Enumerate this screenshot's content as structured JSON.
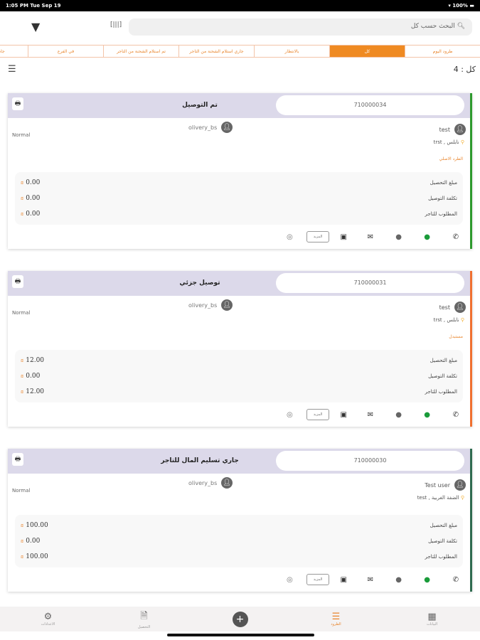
{
  "status_bar": {
    "time": "1:05 PM  Tue Sep 19",
    "battery": "100%"
  },
  "search": {
    "placeholder": "البحث حسب كل"
  },
  "tabs": [
    {
      "label": "طرود اليوم"
    },
    {
      "label": "كل",
      "active": true
    },
    {
      "label": "بالانتظار"
    },
    {
      "label": "جاري استلام الشحنة من التاجر"
    },
    {
      "label": "تم استلام الشحنة من التاجر"
    },
    {
      "label": "في الفرع"
    },
    {
      "label": "جاه"
    }
  ],
  "count_label": "كل : 4",
  "colors": {
    "accent": "#ef8a22",
    "delivered": "#2e9a2e",
    "partial": "#f07030",
    "money": "#2f6b50"
  },
  "labels": {
    "collection": "مبلغ التحصيل",
    "delivery_cost": "تكلفة التوصيل",
    "merchant_due": "المطلوب للتاجر",
    "more": "المزيد",
    "currency": "₪"
  },
  "cards": [
    {
      "id": "710000034",
      "status": "تم التوصيل",
      "customer": "test",
      "driver": "olivery_bs",
      "priority": "Normal",
      "location": "نابلس , trst",
      "tag": "الطرد الاصلي",
      "collection": "0.00",
      "delivery_cost": "0.00",
      "merchant_due": "0.00"
    },
    {
      "id": "710000031",
      "status": "توصيل جزئي",
      "customer": "test",
      "driver": "olivery_bs",
      "priority": "Normal",
      "location": "نابلس , trst",
      "tag": "مستبدل",
      "collection": "12.00",
      "delivery_cost": "0.00",
      "merchant_due": "12.00"
    },
    {
      "id": "710000030",
      "status": "جاري تسليم المال للتاجر",
      "customer": "Test user",
      "driver": "olivery_bs",
      "priority": "Normal",
      "location": "الضفة الغربية , test",
      "tag": "",
      "collection": "100.00",
      "delivery_cost": "0.00",
      "merchant_due": "100.00"
    }
  ],
  "bottom_nav": [
    {
      "label": "البيانات",
      "icon": "grid-icon"
    },
    {
      "label": "الطرود",
      "icon": "list-icon",
      "active": true
    },
    {
      "label": "",
      "icon": "plus-icon"
    },
    {
      "label": "التحصيل",
      "icon": "document-icon"
    },
    {
      "label": "الاعدادات",
      "icon": "gear-icon"
    }
  ]
}
